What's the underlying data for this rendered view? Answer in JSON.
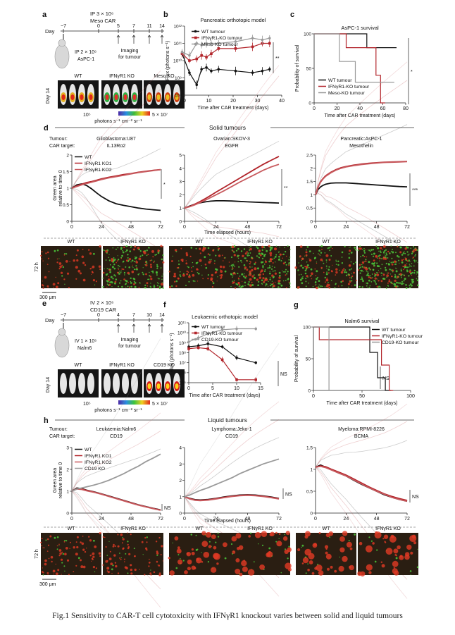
{
  "caption": "Fig.1 Sensitivity to CAR-T cell cytotoxicity with IFNγR1 knockout varies between solid and liquid tumours",
  "colors": {
    "wt": "#111111",
    "ko": "#b2242a",
    "ko2": "#c85a5e",
    "cont": "#9a9a9a",
    "microBg": "#2a1e12"
  },
  "panel_a": {
    "letter": "a",
    "ip_text": "IP 3 × 10⁶",
    "car_text": "Meso CAR",
    "day_label": "Day",
    "days": [
      "−7",
      "0",
      "5",
      "7",
      "11",
      "14"
    ],
    "ip_cells": "IP 2 × 10⁶",
    "cell_line": "AsPC-1",
    "imaging": "Imaging",
    "for_tumour": "for tumour",
    "groups": [
      "WT",
      "IFNγR1 KO",
      "Meso KO"
    ],
    "day_side": "Day 14",
    "scale_min": "10⁵",
    "scale_unit": "photons s⁻¹ cm⁻² sr⁻¹",
    "scale_max": "5 × 10⁷"
  },
  "panel_e": {
    "letter": "e",
    "ip_text": "IV 2 × 10⁶",
    "car_text": "CD19 CAR",
    "day_label": "Day",
    "days": [
      "−7",
      "0",
      "4",
      "7",
      "10",
      "14"
    ],
    "ip_cells": "IV 1 × 10⁶",
    "cell_line": "Nalm6",
    "imaging": "Imaging",
    "for_tumour": "for tumour",
    "groups": [
      "WT",
      "IFNγR1 KO",
      "CD19 KO"
    ],
    "day_side": "Day 14",
    "scale_min": "10⁵",
    "scale_unit": "photons s⁻¹ cm⁻² sr⁻¹",
    "scale_max": "5 × 10⁷"
  },
  "section_d_title": "Solid tumours",
  "section_h_title": "Liquid tumours",
  "row_labels": {
    "tumour": "Tumour:",
    "car": "CAR target:"
  },
  "time_elapsed": "Time elapsed (hours)",
  "micro_d": {
    "time": "72 h",
    "scale": "300 μm",
    "panels": [
      [
        "WT",
        "IFNγR1 KO"
      ],
      [
        "WT",
        "IFNγR1 KO"
      ],
      [
        "WT",
        "IFNγR1 KO"
      ]
    ]
  },
  "micro_h": {
    "time": "72 h",
    "scale": "300 μm",
    "panels": [
      [
        "WT",
        "IFNγR1 KO"
      ],
      [
        "WT",
        "IFNγR1 KO"
      ],
      [
        "WT",
        "IFNγR1 KO"
      ]
    ]
  },
  "chart_data": [
    {
      "id": "b",
      "letter": "b",
      "type": "line",
      "title": "Pancreatic orthotopic model",
      "xlabel": "Time after CAR treatment (days)",
      "ylabel": "Flux (photons s⁻¹)",
      "xlim": [
        0,
        40
      ],
      "xticks": [
        0,
        10,
        20,
        30,
        40
      ],
      "yscale": "log",
      "ylim": [
        8,
        12
      ],
      "yticks": [
        8,
        9,
        10,
        11,
        12
      ],
      "ytick_labels": [
        "10⁸",
        "10⁹",
        "10¹⁰",
        "10¹¹",
        "10¹²"
      ],
      "legend": [
        "WT tumour",
        "IFNγR1-KO tumour",
        "Meso-KO tumour"
      ],
      "significance": "**",
      "x": [
        -1,
        2,
        5,
        7,
        9,
        11,
        14,
        21,
        28,
        32,
        35
      ],
      "series": [
        {
          "name": "WT tumour",
          "values": [
            10.4,
            9.3,
            8.6,
            9.5,
            9.6,
            9.4,
            9.5,
            9.4,
            9.3,
            9.4,
            9.5
          ]
        },
        {
          "name": "IFNγR1-KO tumour",
          "values": [
            10.4,
            10.0,
            10.1,
            10.3,
            10.2,
            10.4,
            10.7,
            10.7,
            10.8,
            11.0,
            11.0
          ]
        },
        {
          "name": "Meso-KO tumour",
          "values": [
            10.5,
            10.3,
            11.0,
            10.9,
            11.0,
            11.0,
            11.0,
            11.1,
            11.3,
            11.2,
            11.3
          ]
        }
      ]
    },
    {
      "id": "c",
      "letter": "c",
      "type": "line",
      "title": "AsPC-1 survival",
      "xlabel": "Time after CAR treatment (days)",
      "ylabel": "Probability of survival",
      "xlim": [
        0,
        80
      ],
      "xticks": [
        0,
        20,
        40,
        60,
        80
      ],
      "ylim": [
        0,
        100
      ],
      "yticks": [
        0,
        50,
        100
      ],
      "legend": [
        "WT tumour",
        "IFNγR1-KO tumour",
        "Meso-KO tumour"
      ],
      "significance": "*",
      "series": [
        {
          "name": "WT tumour",
          "x": [
            0,
            46,
            46,
            72
          ],
          "values": [
            100,
            100,
            80,
            80
          ]
        },
        {
          "name": "IFNγR1-KO tumour",
          "x": [
            0,
            28,
            28,
            54,
            54,
            58,
            58,
            62
          ],
          "values": [
            100,
            100,
            80,
            80,
            40,
            40,
            0,
            0
          ]
        },
        {
          "name": "Meso-KO tumour",
          "x": [
            0,
            22,
            22,
            36,
            36,
            70
          ],
          "values": [
            100,
            100,
            60,
            60,
            30,
            30
          ]
        }
      ]
    },
    {
      "id": "d1",
      "type": "line",
      "tumour": "Glioblastoma:U87",
      "car": "IL13Rα2",
      "xlim": [
        0,
        72
      ],
      "xticks": [
        0,
        24,
        48,
        72
      ],
      "ylim": [
        0,
        2.0
      ],
      "yticks": [
        0,
        0.5,
        1.0,
        1.5,
        2.0
      ],
      "ylabel": "Green area relative to time 0",
      "legend": [
        "WT",
        "IFNγR1 KO1",
        "IFNγR1 KO2"
      ],
      "significance": "*",
      "x": [
        0,
        4,
        8,
        12,
        16,
        20,
        24,
        30,
        36,
        42,
        48,
        54,
        60,
        66,
        72
      ],
      "series": [
        {
          "name": "WT",
          "values": [
            1.0,
            1.1,
            1.13,
            1.08,
            0.98,
            0.86,
            0.75,
            0.62,
            0.53,
            0.48,
            0.44,
            0.4,
            0.37,
            0.35,
            0.33
          ]
        },
        {
          "name": "IFNγR1 KO1",
          "values": [
            1.0,
            1.07,
            1.12,
            1.17,
            1.2,
            1.24,
            1.28,
            1.33,
            1.37,
            1.41,
            1.44,
            1.48,
            1.51,
            1.54,
            1.56
          ]
        },
        {
          "name": "IFNγR1 KO2",
          "values": [
            1.0,
            1.05,
            1.1,
            1.14,
            1.18,
            1.22,
            1.26,
            1.31,
            1.35,
            1.39,
            1.43,
            1.47,
            1.5,
            1.53,
            1.56
          ]
        }
      ]
    },
    {
      "id": "d2",
      "type": "line",
      "tumour": "Ovarian:SKOV-3",
      "car": "EGFR",
      "xlim": [
        0,
        72
      ],
      "xticks": [
        0,
        24,
        48,
        72
      ],
      "ylim": [
        0,
        5
      ],
      "yticks": [
        0,
        1,
        2,
        3,
        4,
        5
      ],
      "significance": "**",
      "x": [
        0,
        4,
        8,
        12,
        16,
        20,
        24,
        30,
        36,
        42,
        48,
        54,
        60,
        66,
        72
      ],
      "series": [
        {
          "name": "WT",
          "values": [
            1.0,
            1.15,
            1.3,
            1.4,
            1.47,
            1.52,
            1.55,
            1.55,
            1.53,
            1.5,
            1.47,
            1.44,
            1.42,
            1.4,
            1.38
          ]
        },
        {
          "name": "IFNγR1 KO1",
          "values": [
            1.0,
            1.12,
            1.3,
            1.5,
            1.72,
            1.95,
            2.2,
            2.55,
            2.9,
            3.25,
            3.6,
            3.95,
            4.3,
            4.6,
            4.9
          ]
        },
        {
          "name": "IFNγR1 KO2",
          "values": [
            1.0,
            1.1,
            1.25,
            1.42,
            1.6,
            1.8,
            2.0,
            2.3,
            2.62,
            2.95,
            3.25,
            3.55,
            3.85,
            4.1,
            4.3
          ]
        }
      ]
    },
    {
      "id": "d3",
      "type": "line",
      "tumour": "Pancreatic:AsPC-1",
      "car": "Mesothelin",
      "xlim": [
        0,
        72
      ],
      "xticks": [
        0,
        24,
        48,
        72
      ],
      "ylim": [
        0,
        2.5
      ],
      "yticks": [
        0,
        0.5,
        1.0,
        1.5,
        2.0,
        2.5
      ],
      "significance": "***",
      "x": [
        0,
        2,
        4,
        6,
        8,
        12,
        16,
        20,
        24,
        30,
        36,
        42,
        48,
        54,
        60,
        66,
        72
      ],
      "series": [
        {
          "name": "WT",
          "values": [
            1.0,
            1.2,
            1.3,
            1.36,
            1.4,
            1.44,
            1.45,
            1.45,
            1.45,
            1.43,
            1.41,
            1.39,
            1.37,
            1.35,
            1.33,
            1.31,
            1.3
          ]
        },
        {
          "name": "IFNγR1 KO1",
          "values": [
            1.0,
            1.3,
            1.5,
            1.62,
            1.72,
            1.85,
            1.95,
            2.02,
            2.07,
            2.12,
            2.16,
            2.19,
            2.21,
            2.23,
            2.24,
            2.25,
            2.26
          ]
        },
        {
          "name": "IFNγR1 KO2",
          "values": [
            1.0,
            1.28,
            1.48,
            1.6,
            1.7,
            1.83,
            1.93,
            2.0,
            2.05,
            2.1,
            2.14,
            2.17,
            2.2,
            2.22,
            2.23,
            2.24,
            2.25
          ]
        }
      ]
    },
    {
      "id": "f",
      "letter": "f",
      "type": "line",
      "title": "Leukaemic orthotopic model",
      "xlabel": "Time after CAR treatment (days)",
      "ylabel": "Flux (photons s⁻¹)",
      "xlim": [
        0,
        15
      ],
      "xticks": [
        0,
        5,
        10,
        15
      ],
      "yscale": "log",
      "ylim": [
        5,
        11
      ],
      "yticks": [
        5,
        6,
        7,
        8,
        9,
        10,
        11
      ],
      "ytick_labels": [
        "10⁵",
        "10⁶",
        "10⁷",
        "10⁸",
        "10⁹",
        "10¹⁰",
        "10¹¹"
      ],
      "legend": [
        "WT tumour",
        "IFNγR1-KO tumour",
        "CD19-KO tumour"
      ],
      "significance": "NS",
      "x": [
        0,
        2,
        4,
        7,
        10,
        14
      ],
      "series": [
        {
          "name": "WT tumour",
          "values": [
            8.6,
            8.7,
            8.9,
            8.6,
            7.5,
            7.0
          ]
        },
        {
          "name": "IFNγR1-KO tumour",
          "values": [
            8.4,
            8.5,
            8.4,
            7.3,
            5.3,
            5.3
          ]
        },
        {
          "name": "CD19-KO tumour",
          "values": [
            9.1,
            9.5,
            9.9,
            10.3,
            10.4,
            10.4
          ]
        }
      ]
    },
    {
      "id": "g",
      "letter": "g",
      "type": "line",
      "title": "Nalm6 survival",
      "xlabel": "Time after CAR treatment (days)",
      "ylabel": "Probability of survival",
      "xlim": [
        0,
        100
      ],
      "xticks": [
        0,
        50,
        100
      ],
      "ylim": [
        0,
        100
      ],
      "yticks": [
        0,
        50,
        100
      ],
      "legend": [
        "WT tumour",
        "IFNγR1-KO tumour",
        "CD19-KO tumour"
      ],
      "significance": "NS",
      "series": [
        {
          "name": "WT tumour",
          "x": [
            0,
            58,
            58,
            66,
            66,
            74,
            74,
            80
          ],
          "values": [
            100,
            100,
            60,
            60,
            20,
            20,
            0,
            0
          ]
        },
        {
          "name": "IFNγR1-KO tumour",
          "x": [
            0,
            6,
            6,
            70,
            70,
            78,
            78,
            82
          ],
          "values": [
            100,
            100,
            80,
            80,
            40,
            40,
            0,
            0
          ]
        },
        {
          "name": "CD19-KO tumour",
          "x": [
            0,
            16,
            16
          ],
          "values": [
            100,
            100,
            0
          ]
        }
      ]
    },
    {
      "id": "h1",
      "type": "line",
      "tumour": "Leukaemia:Nalm6",
      "car": "CD19",
      "xlim": [
        0,
        72
      ],
      "xticks": [
        0,
        24,
        48,
        72
      ],
      "ylim": [
        0,
        3
      ],
      "yticks": [
        0,
        1,
        2,
        3
      ],
      "ylabel": "Green area relative to time 0",
      "legend": [
        "WT",
        "IFNγR1 KO1",
        "IFNγR1 KO2",
        "CD19 KO"
      ],
      "significance": "NS",
      "x": [
        0,
        4,
        8,
        12,
        18,
        24,
        30,
        36,
        42,
        48,
        54,
        60,
        66,
        72
      ],
      "series": [
        {
          "name": "WT",
          "values": [
            1.0,
            1.15,
            1.12,
            1.05,
            0.97,
            0.88,
            0.78,
            0.68,
            0.58,
            0.48,
            0.38,
            0.3,
            0.22,
            0.15
          ]
        },
        {
          "name": "IFNγR1 KO1",
          "values": [
            1.0,
            1.12,
            1.1,
            1.04,
            0.96,
            0.87,
            0.77,
            0.67,
            0.57,
            0.47,
            0.37,
            0.29,
            0.21,
            0.14
          ]
        },
        {
          "name": "IFNγR1 KO2",
          "values": [
            1.0,
            1.1,
            1.08,
            1.02,
            0.95,
            0.86,
            0.76,
            0.66,
            0.56,
            0.46,
            0.36,
            0.28,
            0.2,
            0.13
          ]
        },
        {
          "name": "CD19 KO",
          "values": [
            1.0,
            1.1,
            1.15,
            1.2,
            1.28,
            1.38,
            1.5,
            1.65,
            1.8,
            1.98,
            2.15,
            2.35,
            2.52,
            2.7
          ]
        }
      ]
    },
    {
      "id": "h2",
      "type": "line",
      "tumour": "Lymphoma:Jeko-1",
      "car": "CD19",
      "xlim": [
        0,
        72
      ],
      "xticks": [
        0,
        24,
        48,
        72
      ],
      "ylim": [
        0,
        4
      ],
      "yticks": [
        0,
        1,
        2,
        3,
        4
      ],
      "significance": "NS",
      "x": [
        0,
        4,
        8,
        12,
        18,
        24,
        30,
        36,
        42,
        48,
        54,
        60,
        66,
        72
      ],
      "series": [
        {
          "name": "WT",
          "values": [
            1.0,
            0.9,
            0.82,
            0.8,
            0.83,
            0.9,
            0.98,
            1.05,
            1.1,
            1.12,
            1.1,
            1.05,
            0.98,
            0.9
          ]
        },
        {
          "name": "IFNγR1 KO1",
          "values": [
            1.0,
            0.88,
            0.8,
            0.78,
            0.81,
            0.88,
            0.96,
            1.03,
            1.08,
            1.1,
            1.08,
            1.03,
            0.96,
            0.88
          ]
        },
        {
          "name": "IFNγR1 KO2",
          "values": [
            1.0,
            0.86,
            0.78,
            0.76,
            0.79,
            0.86,
            0.94,
            1.01,
            1.06,
            1.08,
            1.06,
            1.01,
            0.94,
            0.86
          ]
        },
        {
          "name": "CD19 KO",
          "values": [
            1.0,
            1.1,
            1.25,
            1.38,
            1.55,
            1.75,
            1.95,
            2.15,
            2.4,
            2.6,
            2.8,
            3.0,
            3.15,
            3.3
          ]
        }
      ]
    },
    {
      "id": "h3",
      "type": "line",
      "tumour": "Myeloma:RPMI-8226",
      "car": "BCMA",
      "xlim": [
        0,
        72
      ],
      "xticks": [
        0,
        24,
        48,
        72
      ],
      "ylim": [
        0,
        1.5
      ],
      "yticks": [
        0,
        0.5,
        1.0,
        1.5
      ],
      "significance": "NS",
      "x": [
        0,
        4,
        8,
        12,
        18,
        24,
        30,
        36,
        42,
        48,
        54,
        60,
        66,
        72
      ],
      "series": [
        {
          "name": "WT",
          "values": [
            1.05,
            1.1,
            1.05,
            1.0,
            0.92,
            0.85,
            0.75,
            0.66,
            0.58,
            0.5,
            0.42,
            0.36,
            0.31,
            0.27
          ]
        },
        {
          "name": "IFNγR1 KO1",
          "values": [
            1.05,
            1.08,
            1.06,
            1.01,
            0.94,
            0.87,
            0.78,
            0.69,
            0.6,
            0.52,
            0.44,
            0.38,
            0.33,
            0.29
          ]
        },
        {
          "name": "IFNγR1 KO2",
          "values": [
            1.05,
            1.07,
            1.04,
            0.99,
            0.92,
            0.85,
            0.76,
            0.67,
            0.58,
            0.5,
            0.43,
            0.36,
            0.31,
            0.27
          ]
        }
      ]
    }
  ]
}
